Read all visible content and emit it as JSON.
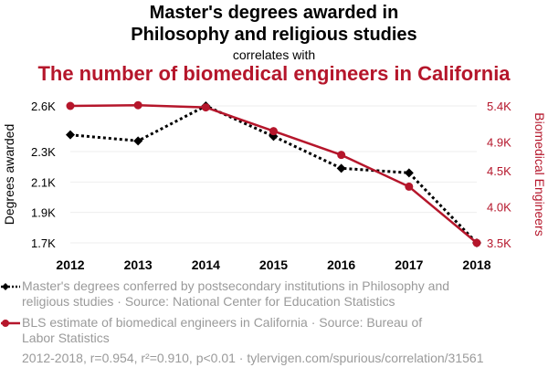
{
  "header": {
    "title_line1": "Master's degrees awarded in",
    "title_line2": "Philosophy and religious studies",
    "connector": "correlates with",
    "subtitle": "The number of biomedical engineers in California"
  },
  "colors": {
    "series1": "#000000",
    "series2": "#b5162b",
    "muted": "#9a9a9a",
    "grid": "#eeeeee"
  },
  "chart_data": {
    "type": "line",
    "x": [
      2012,
      2013,
      2014,
      2015,
      2016,
      2017,
      2018
    ],
    "x_tick_labels": [
      "2012",
      "2013",
      "2014",
      "2015",
      "2016",
      "2017",
      "2018"
    ],
    "grid": true,
    "left_axis": {
      "label": "Degrees awarded",
      "ylim": [
        1.7,
        2.6
      ],
      "ticks": [
        1.7,
        1.9,
        2.1,
        2.3,
        2.6
      ],
      "tick_labels": [
        "1.7K",
        "1.9K",
        "2.1K",
        "2.3K",
        "2.6K"
      ]
    },
    "right_axis": {
      "label": "Biomedical Engineers",
      "ylim": [
        3.5,
        5.4
      ],
      "ticks": [
        3.5,
        4.0,
        4.5,
        4.9,
        5.4
      ],
      "tick_labels": [
        "3.5K",
        "4.0K",
        "4.5K",
        "4.9K",
        "5.4K"
      ]
    },
    "series": [
      {
        "name": "Master's degrees conferred by postsecondary institutions in Philosophy and religious studies · Source: National Center for Education Statistics",
        "axis": "left",
        "style": "dotted",
        "marker": "diamond",
        "values": [
          2.41,
          2.37,
          2.6,
          2.4,
          2.19,
          2.16,
          1.7
        ]
      },
      {
        "name": "BLS estimate of biomedical engineers in California · Source: Bureau of Labor Statistics",
        "axis": "right",
        "style": "solid",
        "marker": "circle",
        "values": [
          5.4,
          5.41,
          5.38,
          5.05,
          4.72,
          4.28,
          3.5
        ]
      }
    ]
  },
  "footer": {
    "text": "2012-2018, r=0.954, r²=0.910, p<0.01 · tylervigen.com/spurious/correlation/31561"
  }
}
